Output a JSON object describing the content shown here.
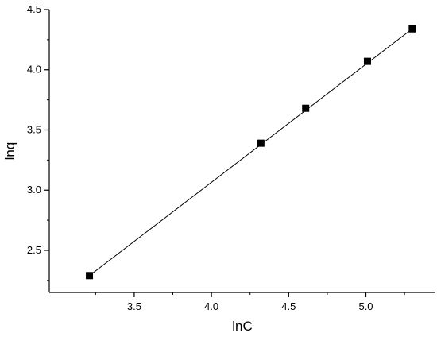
{
  "chart_data": {
    "type": "scatter",
    "title": "",
    "xlabel": "lnC",
    "ylabel": "lnq",
    "xlim": [
      2.95,
      5.45
    ],
    "ylim": [
      2.15,
      4.5
    ],
    "x_ticks": [
      "3.5",
      "4.0",
      "4.5",
      "5.0"
    ],
    "y_ticks": [
      "2.5",
      "3.0",
      "3.5",
      "4.0",
      "4.5"
    ],
    "x_tick_values": [
      3.5,
      4.0,
      4.5,
      5.0
    ],
    "y_tick_values": [
      2.5,
      3.0,
      3.5,
      4.0,
      4.5
    ],
    "grid": false,
    "legend": "none",
    "series": [
      {
        "marker": "square",
        "color": "#000000",
        "x": [
          3.21,
          4.32,
          4.61,
          5.01,
          5.3
        ],
        "y": [
          2.29,
          3.39,
          3.68,
          4.07,
          4.34
        ]
      }
    ],
    "fit_line": {
      "color": "#000000",
      "x": [
        3.21,
        5.3
      ],
      "y": [
        2.29,
        4.34
      ]
    }
  }
}
